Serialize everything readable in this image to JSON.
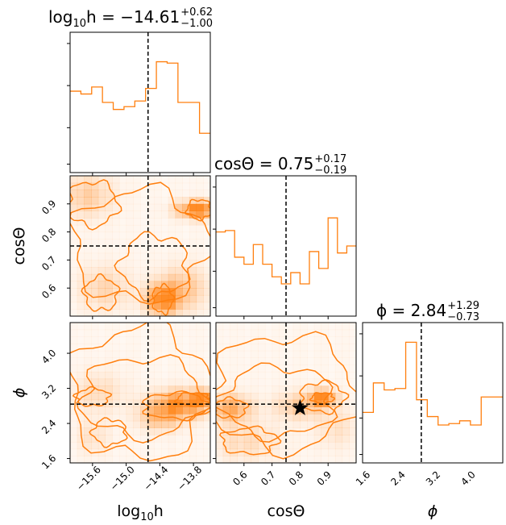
{
  "chart_data": {
    "type": "corner",
    "colors": {
      "hist": "#ff7f0e",
      "contour": "#ff7f0e",
      "truth_line": "#000000",
      "marker": "#000000"
    },
    "parameters": [
      {
        "key": "logh",
        "label_base": "log",
        "label_sub": "10",
        "label_tail": "h",
        "title_prefix": "log",
        "title_sub": "10",
        "title_mid": "h = ",
        "title_value": "−14.61",
        "title_plus": "+0.62",
        "title_minus": "−1.00",
        "range": [
          -16.0,
          -13.5
        ],
        "ticks": [
          -15.6,
          -15.0,
          -14.4,
          -13.8
        ],
        "tick_labels": [
          "−15.6",
          "−15.0",
          "−14.4",
          "−13.8"
        ],
        "median": -14.61,
        "hist": [
          0.58,
          0.56,
          0.61,
          0.5,
          0.45,
          0.47,
          0.51,
          0.6,
          0.79,
          0.78,
          0.5,
          0.5,
          0.28
        ]
      },
      {
        "key": "costheta",
        "label_base": "cosΘ",
        "title_prefix": "cosΘ = ",
        "title_value": "0.75",
        "title_plus": "+0.17",
        "title_minus": "−0.19",
        "range": [
          0.5,
          1.0
        ],
        "ticks": [
          0.6,
          0.7,
          0.8,
          0.9
        ],
        "tick_labels": [
          "0.6",
          "0.7",
          "0.8",
          "0.9"
        ],
        "median": 0.75,
        "hist": [
          0.6,
          0.61,
          0.42,
          0.37,
          0.51,
          0.37,
          0.28,
          0.23,
          0.31,
          0.23,
          0.46,
          0.34,
          0.7,
          0.45,
          0.5
        ]
      },
      {
        "key": "phi",
        "label_base": "ϕ",
        "title_prefix": "ϕ = ",
        "title_value": "2.84",
        "title_plus": "+1.29",
        "title_minus": "−0.73",
        "range": [
          1.5,
          4.7
        ],
        "ticks": [
          1.6,
          2.4,
          3.2,
          4.0
        ],
        "tick_labels": [
          "1.6",
          "2.4",
          "3.2",
          "4.0"
        ],
        "median": 2.84,
        "hist": [
          0.36,
          0.57,
          0.52,
          0.53,
          0.86,
          0.45,
          0.33,
          0.27,
          0.28,
          0.3,
          0.27,
          0.47,
          0.47
        ]
      }
    ],
    "marker": {
      "costheta": 0.8,
      "phi": 2.75
    }
  }
}
